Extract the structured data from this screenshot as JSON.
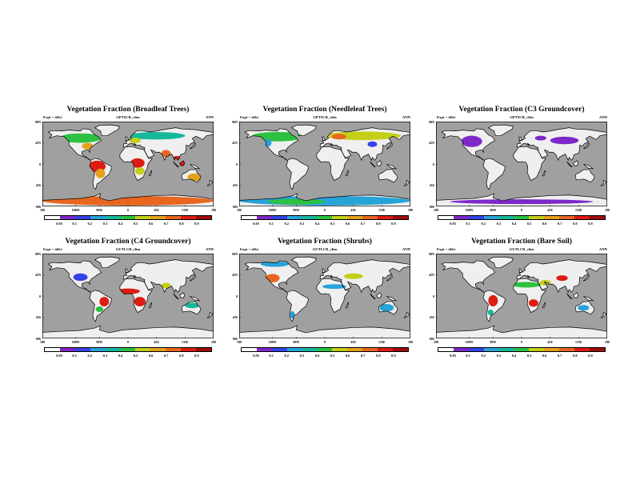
{
  "colors": {
    "ocean": "#a0a0a0",
    "land": "#efefef",
    "coast": "#000000",
    "levels": [
      "#ffffff",
      "#7d28c9",
      "#3641e8",
      "#27a3d8",
      "#16b89b",
      "#2cc13f",
      "#c4cf1a",
      "#e5a11b",
      "#e8661f",
      "#dd1c12",
      "#9e0b0b"
    ]
  },
  "axes": {
    "y_labels": [
      "90N",
      "45N",
      "0",
      "45S",
      "90S"
    ],
    "x_labels": [
      "180",
      "100W",
      "90W",
      "0",
      "45E",
      "135E",
      "180"
    ]
  },
  "colorbar": {
    "labels": [
      "0.05",
      "0.1",
      "0.2",
      "0.3",
      "0.4",
      "0.5",
      "0.6",
      "0.7",
      "0.8",
      "0.9"
    ]
  },
  "panels": [
    {
      "title": "Vegetation Fraction (Broadleaf Trees)",
      "expt": "Expt = tdlci",
      "source": "GPTSCR_clim",
      "season": "ANN",
      "regions": [
        {
          "cx": -65,
          "cy": -5,
          "rx": 18,
          "ry": 12,
          "level": 9
        },
        {
          "cx": -58,
          "cy": -20,
          "rx": 10,
          "ry": 10,
          "level": 7
        },
        {
          "cx": 20,
          "cy": 2,
          "rx": 15,
          "ry": 10,
          "level": 9
        },
        {
          "cx": 25,
          "cy": -15,
          "rx": 10,
          "ry": 8,
          "level": 6
        },
        {
          "cx": 105,
          "cy": 5,
          "rx": 20,
          "ry": 12,
          "level": 9
        },
        {
          "cx": 80,
          "cy": 22,
          "rx": 10,
          "ry": 8,
          "level": 8
        },
        {
          "cx": 140,
          "cy": -28,
          "rx": 15,
          "ry": 8,
          "level": 7
        },
        {
          "cx": -100,
          "cy": 55,
          "rx": 45,
          "ry": 10,
          "level": 5
        },
        {
          "cx": 60,
          "cy": 60,
          "rx": 60,
          "ry": 8,
          "level": 4
        },
        {
          "cx": -85,
          "cy": 38,
          "rx": 12,
          "ry": 7,
          "level": 7
        },
        {
          "cx": 15,
          "cy": 50,
          "rx": 12,
          "ry": 6,
          "level": 6
        },
        {
          "cx": 0,
          "cy": -78,
          "rx": 180,
          "ry": 10,
          "level": 8
        }
      ]
    },
    {
      "title": "Vegetation Fraction (Needleleaf Trees)",
      "expt": "Expt = tdlci",
      "source": "GPTSCR_clim",
      "season": "ANN",
      "regions": [
        {
          "cx": -100,
          "cy": 58,
          "rx": 55,
          "ry": 10,
          "level": 5
        },
        {
          "cx": 80,
          "cy": 60,
          "rx": 80,
          "ry": 9,
          "level": 6
        },
        {
          "cx": 30,
          "cy": 58,
          "rx": 15,
          "ry": 6,
          "level": 8
        },
        {
          "cx": 100,
          "cy": 42,
          "rx": 10,
          "ry": 6,
          "level": 2
        },
        {
          "cx": -120,
          "cy": 45,
          "rx": 8,
          "ry": 8,
          "level": 3
        },
        {
          "cx": 0,
          "cy": -78,
          "rx": 180,
          "ry": 10,
          "level": 3
        },
        {
          "cx": -60,
          "cy": -80,
          "rx": 60,
          "ry": 6,
          "level": 5
        }
      ]
    },
    {
      "title": "Vegetation Fraction (C3 Groundcover)",
      "expt": "Expt = tdlci",
      "source": "GPTSCR_clim",
      "season": "ANN",
      "regions": [
        {
          "cx": -105,
          "cy": 48,
          "rx": 22,
          "ry": 12,
          "level": 1
        },
        {
          "cx": 90,
          "cy": 50,
          "rx": 30,
          "ry": 8,
          "level": 1
        },
        {
          "cx": 40,
          "cy": 55,
          "rx": 12,
          "ry": 5,
          "level": 1
        },
        {
          "cx": 0,
          "cy": -80,
          "rx": 150,
          "ry": 5,
          "level": 1
        }
      ]
    },
    {
      "title": "Vegetation Fraction (C4 Groundcover)",
      "expt": "Expt = tdlci",
      "source": "GUTLCR_clim",
      "season": "ANN",
      "regions": [
        {
          "cx": -100,
          "cy": 40,
          "rx": 15,
          "ry": 8,
          "level": 2
        },
        {
          "cx": 0,
          "cy": 10,
          "rx": 25,
          "ry": 6,
          "level": 9
        },
        {
          "cx": 25,
          "cy": -12,
          "rx": 12,
          "ry": 10,
          "level": 9
        },
        {
          "cx": -50,
          "cy": -12,
          "rx": 10,
          "ry": 10,
          "level": 9
        },
        {
          "cx": -60,
          "cy": -28,
          "rx": 8,
          "ry": 6,
          "level": 5
        },
        {
          "cx": 80,
          "cy": 22,
          "rx": 10,
          "ry": 6,
          "level": 6
        },
        {
          "cx": 135,
          "cy": -20,
          "rx": 15,
          "ry": 6,
          "level": 4
        }
      ]
    },
    {
      "title": "Vegetation Fraction (Shrubs)",
      "expt": "Expt = tdlci",
      "source": "GUTLCR_clim",
      "season": "ANN",
      "regions": [
        {
          "cx": -110,
          "cy": 38,
          "rx": 15,
          "ry": 9,
          "level": 8
        },
        {
          "cx": -105,
          "cy": 68,
          "rx": 30,
          "ry": 6,
          "level": 3
        },
        {
          "cx": 60,
          "cy": 42,
          "rx": 20,
          "ry": 6,
          "level": 6
        },
        {
          "cx": 20,
          "cy": 20,
          "rx": 25,
          "ry": 5,
          "level": 3
        },
        {
          "cx": 130,
          "cy": -25,
          "rx": 15,
          "ry": 8,
          "level": 3
        },
        {
          "cx": -68,
          "cy": -40,
          "rx": 5,
          "ry": 8,
          "level": 3
        }
      ]
    },
    {
      "title": "Vegetation Fraction (Bare Soil)",
      "expt": "Expt = tdlci",
      "source": "GUTLCR_clim",
      "season": "ANN",
      "regions": [
        {
          "cx": 10,
          "cy": 24,
          "rx": 30,
          "ry": 6,
          "level": 5
        },
        {
          "cx": 50,
          "cy": 28,
          "rx": 12,
          "ry": 6,
          "level": 6
        },
        {
          "cx": 85,
          "cy": 38,
          "rx": 12,
          "ry": 6,
          "level": 9
        },
        {
          "cx": -60,
          "cy": -10,
          "rx": 10,
          "ry": 12,
          "level": 9
        },
        {
          "cx": 25,
          "cy": -15,
          "rx": 10,
          "ry": 8,
          "level": 9
        },
        {
          "cx": -65,
          "cy": -35,
          "rx": 6,
          "ry": 6,
          "level": 4
        },
        {
          "cx": 130,
          "cy": -25,
          "rx": 12,
          "ry": 6,
          "level": 3
        }
      ]
    }
  ]
}
